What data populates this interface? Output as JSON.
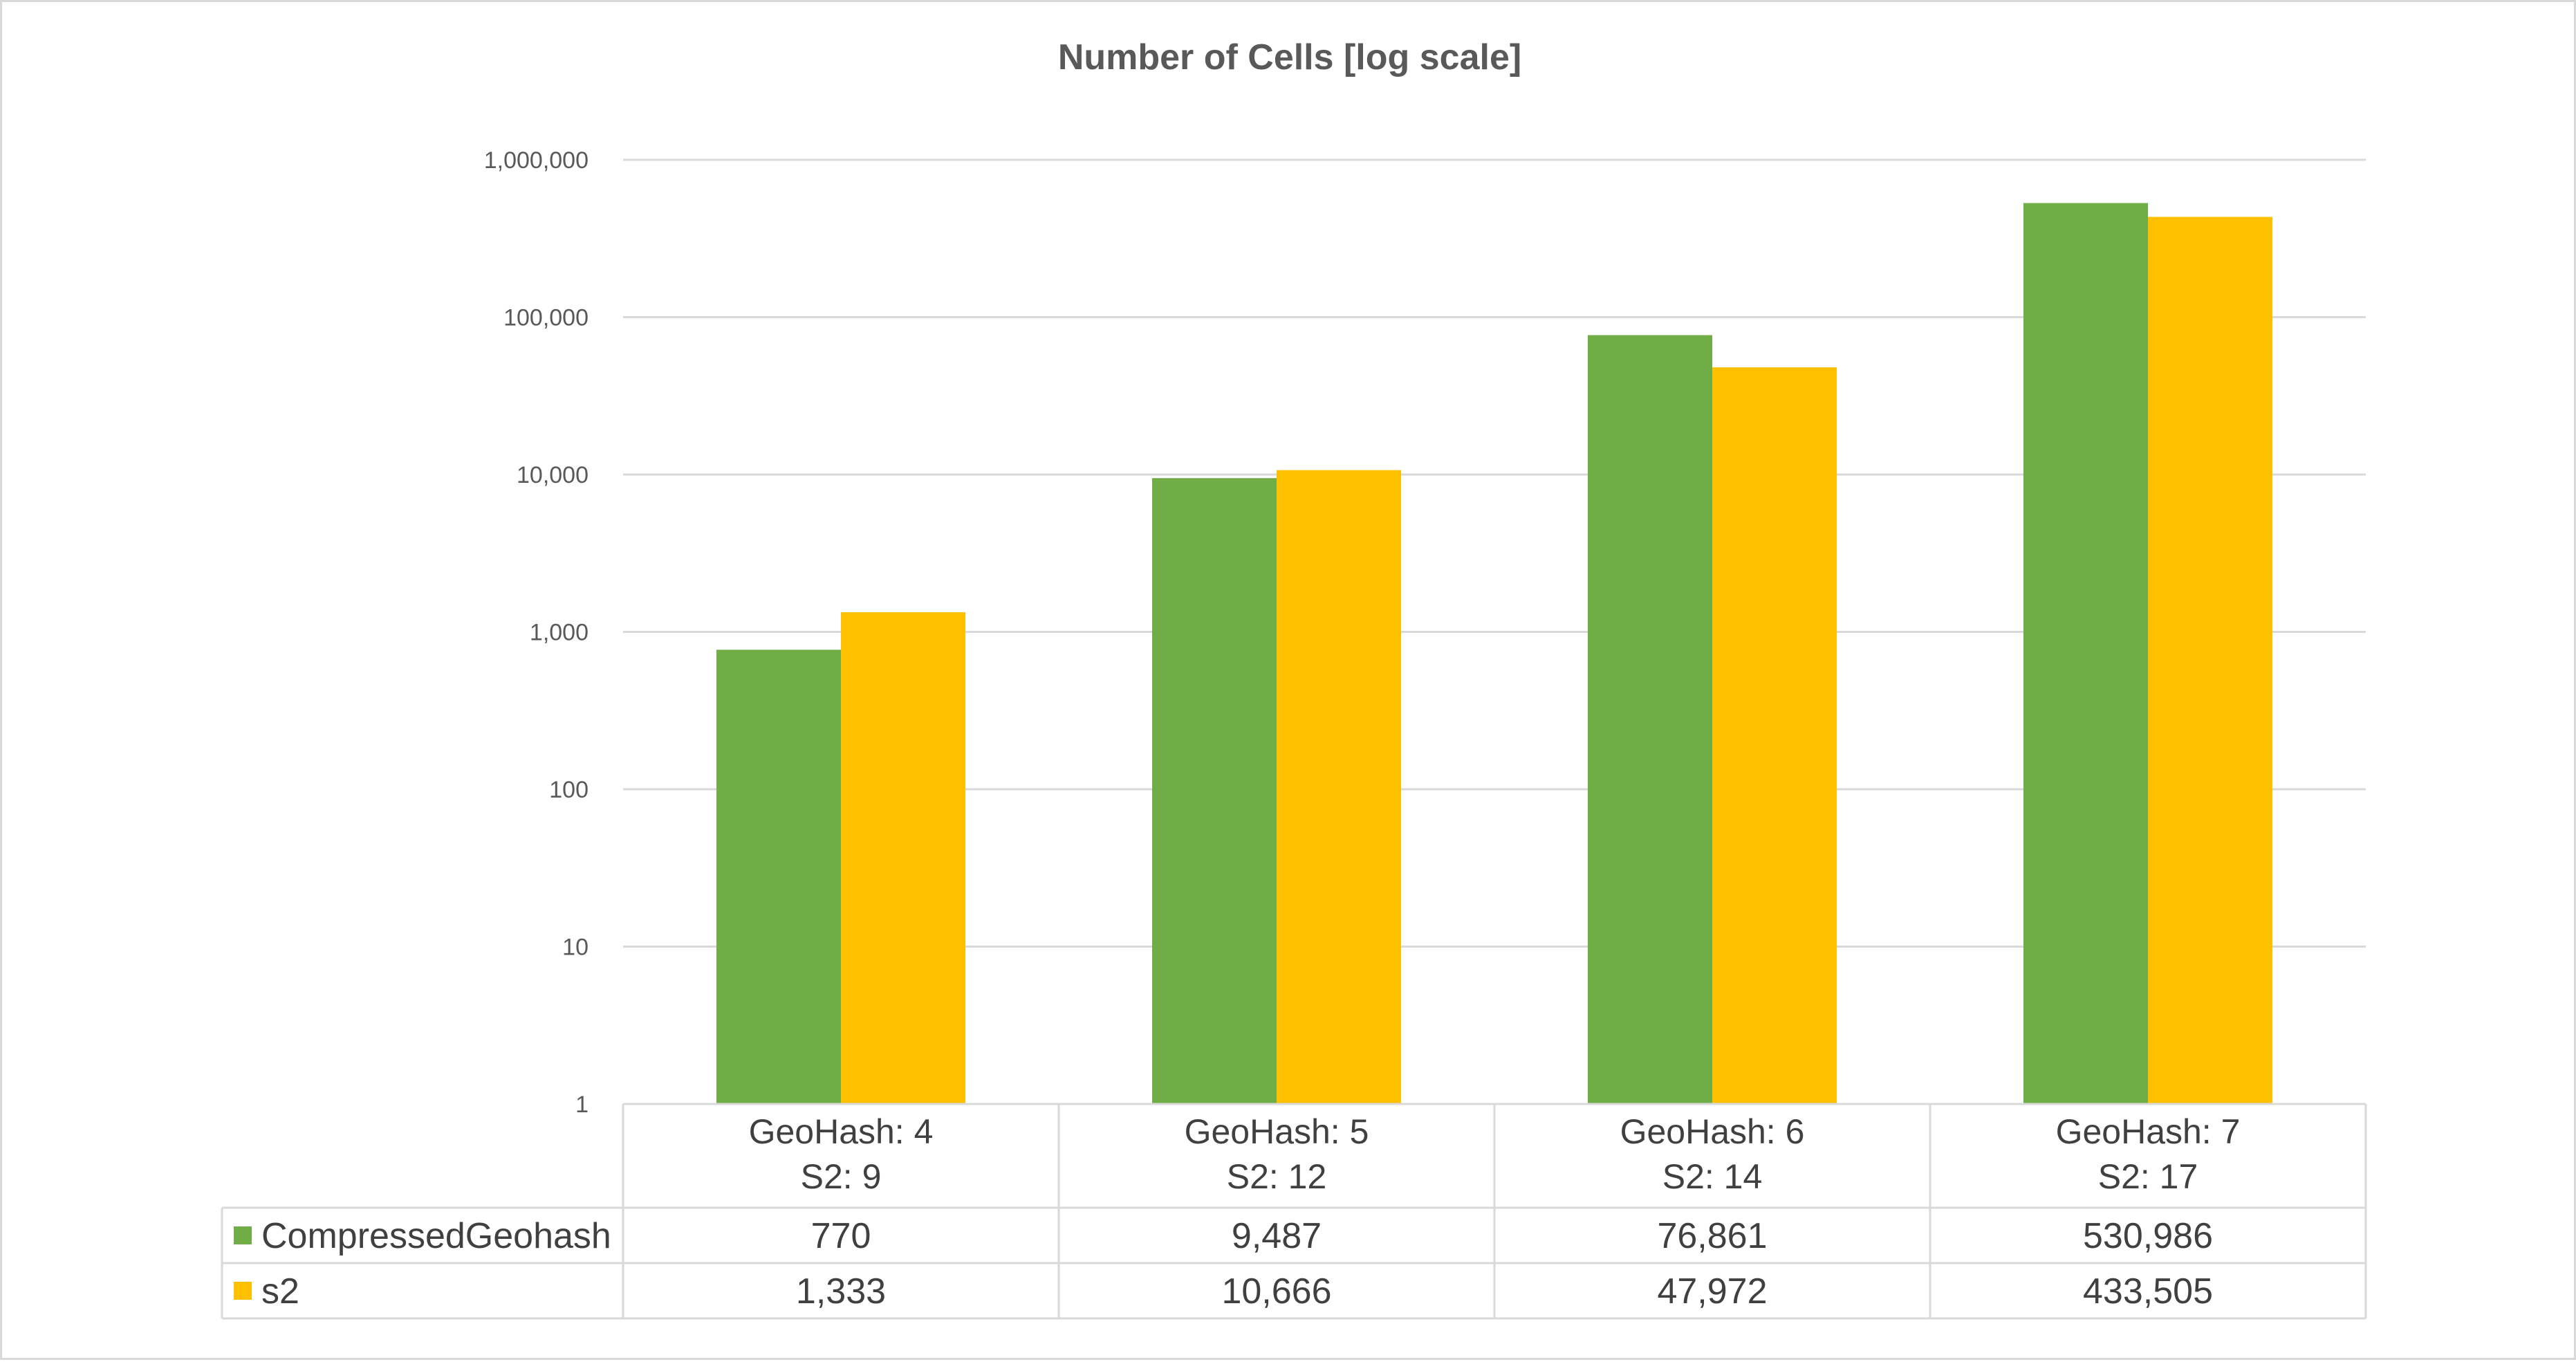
{
  "chart_data": {
    "type": "bar",
    "title": "Number of Cells [log scale]",
    "yscale": "log",
    "ylim": [
      1,
      1000000
    ],
    "y_ticks": [
      1,
      10,
      100,
      1000,
      10000,
      100000,
      1000000
    ],
    "y_tick_labels": [
      "1",
      "10",
      "100",
      "1,000",
      "10,000",
      "100,000",
      "1,000,000"
    ],
    "grid": true,
    "legend_placement": "data-table-below",
    "categories": [
      [
        "GeoHash: 4",
        "S2: 9"
      ],
      [
        "GeoHash: 5",
        "S2: 12"
      ],
      [
        "GeoHash: 6",
        "S2: 14"
      ],
      [
        "GeoHash: 7",
        "S2: 17"
      ]
    ],
    "series": [
      {
        "name": "CompressedGeohash",
        "color": "#70ad47",
        "values": [
          770,
          9487,
          76861,
          530986
        ],
        "value_labels": [
          "770",
          "9,487",
          "76,861",
          "530,986"
        ]
      },
      {
        "name": "s2",
        "color": "#ffc000",
        "values": [
          1333,
          10666,
          47972,
          433505
        ],
        "value_labels": [
          "1,333",
          "10,666",
          "47,972",
          "433,505"
        ]
      }
    ],
    "gridline_color": "#d9d9d9"
  }
}
